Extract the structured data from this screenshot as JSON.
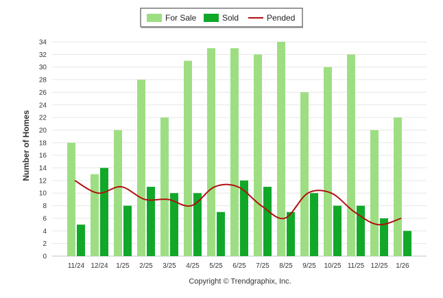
{
  "chart_data": {
    "type": "bar",
    "categories": [
      "11/24",
      "12/24",
      "1/25",
      "2/25",
      "3/25",
      "4/25",
      "5/25",
      "6/25",
      "7/25",
      "8/25",
      "9/25",
      "10/25",
      "11/25",
      "12/25",
      "1/26"
    ],
    "series": [
      {
        "name": "For Sale",
        "type": "bar",
        "color": "#9ede83",
        "values": [
          18,
          13,
          20,
          28,
          22,
          31,
          33,
          33,
          32,
          34,
          26,
          30,
          32,
          20,
          22
        ]
      },
      {
        "name": "Sold",
        "type": "bar",
        "color": "#11a82a",
        "values": [
          5,
          14,
          8,
          11,
          10,
          10,
          7,
          12,
          11,
          7,
          10,
          8,
          8,
          6,
          4
        ]
      },
      {
        "name": "Pended",
        "type": "line",
        "color": "#b01010",
        "values": [
          12,
          10,
          11,
          9,
          9,
          8,
          11,
          11,
          8,
          6,
          10,
          10,
          7,
          5,
          6
        ]
      }
    ],
    "xlabel": "",
    "ylabel": "Number of Homes",
    "ylim": [
      0,
      34
    ],
    "yticks": [
      0,
      2,
      4,
      6,
      8,
      10,
      12,
      14,
      16,
      18,
      20,
      22,
      24,
      26,
      28,
      30,
      32,
      34
    ],
    "grid": true,
    "legend_position": "top-center"
  },
  "footer": "Copyright © Trendgraphix, Inc."
}
